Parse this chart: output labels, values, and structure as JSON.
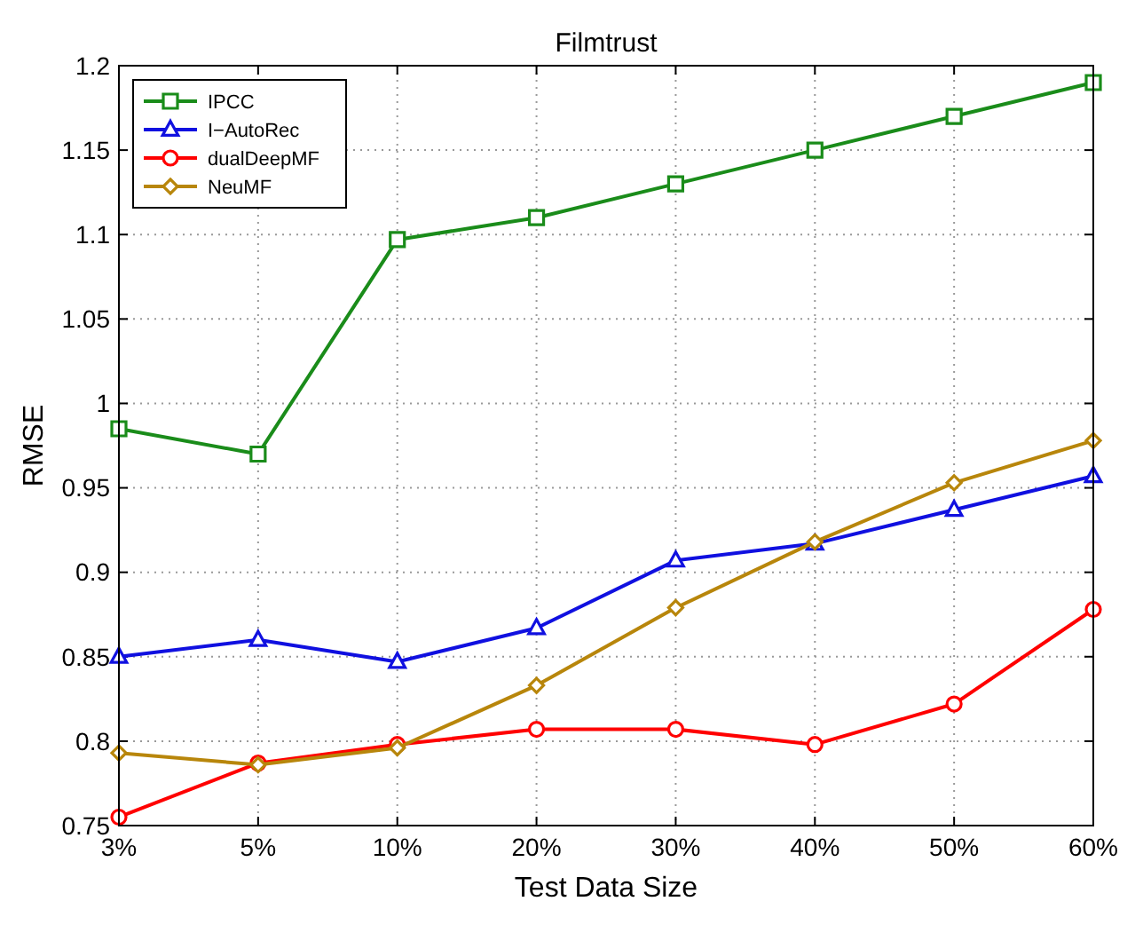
{
  "chart_data": {
    "type": "line",
    "title": "Filmtrust",
    "xlabel": "Test Data Size",
    "ylabel": "RMSE",
    "categories": [
      "3%",
      "5%",
      "10%",
      "20%",
      "30%",
      "40%",
      "50%",
      "60%"
    ],
    "ylim": [
      0.75,
      1.2
    ],
    "yticks": [
      0.75,
      0.8,
      0.85,
      0.9,
      0.95,
      1,
      1.05,
      1.1,
      1.15,
      1.2
    ],
    "grid": true,
    "legend": "top left",
    "line_style": "solid",
    "series": [
      {
        "name": "IPCC",
        "color": "#1a8c1a",
        "marker": "square",
        "values": [
          0.985,
          0.97,
          1.097,
          1.11,
          1.13,
          1.15,
          1.17,
          1.19
        ]
      },
      {
        "name": "I−AutoRec",
        "color": "#1010e0",
        "marker": "triangle",
        "values": [
          0.85,
          0.86,
          0.847,
          0.867,
          0.907,
          0.917,
          0.937,
          0.957
        ]
      },
      {
        "name": "dualDeepMF",
        "color": "#ff0000",
        "marker": "circle",
        "values": [
          0.755,
          0.787,
          0.798,
          0.807,
          0.807,
          0.798,
          0.822,
          0.878
        ]
      },
      {
        "name": "NeuMF",
        "color": "#b8860b",
        "marker": "diamond",
        "values": [
          0.793,
          0.786,
          0.796,
          0.833,
          0.879,
          0.918,
          0.953,
          0.978
        ]
      }
    ]
  }
}
